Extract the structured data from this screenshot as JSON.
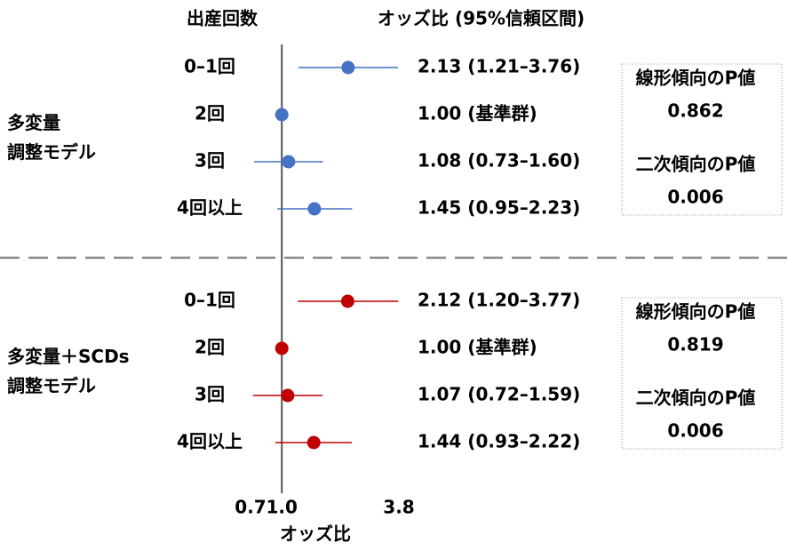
{
  "chart_data": {
    "type": "forest",
    "row_header": "出産回数",
    "estimate_header": "オッズ比 (95%信頼区間)",
    "xlabel": "オッズ比",
    "xscale": "log",
    "xlim": [
      0.7,
      3.8
    ],
    "xticks": [
      0.7,
      {
        "value": 1,
        "label": "1.0"
      },
      3.8
    ],
    "groups": [
      {
        "name": [
          "多変量",
          "調整モデル"
        ],
        "color": "#4472c4",
        "highlight": 0,
        "categories": [
          "0–1回",
          "2回",
          "3回",
          "4回以上"
        ],
        "values": [
          2.13,
          1,
          1.08,
          1.45
        ],
        "lower": [
          1.21,
          null,
          0.73,
          0.95
        ],
        "upper": [
          3.76,
          null,
          1.6,
          2.23
        ],
        "value_labels": [
          "2.13 (1.21–3.76)",
          "1.00 (基準群)",
          "1.08 (0.73–1.60)",
          "1.45 (0.95–2.23)"
        ],
        "p_values": [
          {
            "label": "線形傾向のP値",
            "value": 0.862
          },
          {
            "label": "二次傾向のP値",
            "value": 0.006
          }
        ]
      },
      {
        "name": [
          "多変量＋SCDs",
          "調整モデル"
        ],
        "color": "#c00000",
        "highlight": 0,
        "categories": [
          "0–1回",
          "2回",
          "3回",
          "4回以上"
        ],
        "values": [
          2.12,
          1,
          1.07,
          1.44
        ],
        "lower": [
          1.2,
          null,
          0.72,
          0.93
        ],
        "upper": [
          3.77,
          null,
          1.59,
          2.22
        ],
        "value_labels": [
          "2.12 (1.20–3.77)",
          "1.00 (基準群)",
          "1.07 (0.72–1.59)",
          "1.44 (0.93–2.22)"
        ],
        "p_values": [
          {
            "label": "線形傾向のP値",
            "value": 0.819
          },
          {
            "label": "二次傾向のP値",
            "value": 0.006
          }
        ]
      }
    ]
  }
}
